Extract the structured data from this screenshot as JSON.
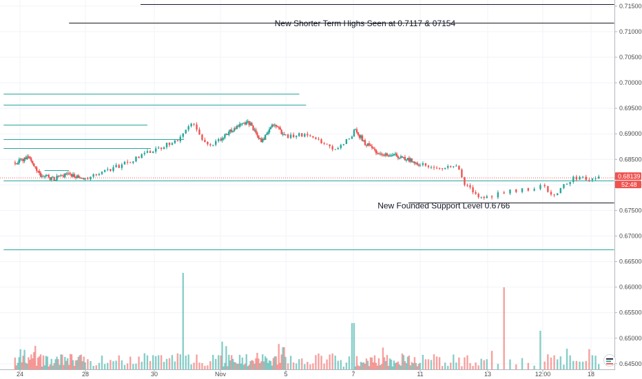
{
  "chart_data": {
    "type": "candlestick",
    "title": "",
    "y_axis": {
      "side": "right",
      "range": [
        0.6439,
        0.7162
      ],
      "ticks": [
        "0.71500",
        "0.71000",
        "0.70500",
        "0.70000",
        "0.69500",
        "0.69000",
        "0.68500",
        "0.68000",
        "0.67500",
        "0.67000",
        "0.66500",
        "0.66000",
        "0.65500",
        "0.65000",
        "0.64500"
      ]
    },
    "x_axis": {
      "ticks": [
        {
          "label": "24",
          "day": 0
        },
        {
          "label": "28",
          "day": 4
        },
        {
          "label": "30",
          "day": 6
        },
        {
          "label": "Nov",
          "day": 8
        },
        {
          "label": "5",
          "day": 12
        },
        {
          "label": "7",
          "day": 14
        },
        {
          "label": "11",
          "day": 18
        },
        {
          "label": "13",
          "day": 20
        },
        {
          "label": "12:00",
          "day": 20.75
        },
        {
          "label": "18",
          "day": 22
        }
      ]
    },
    "price_path": [
      {
        "day": -0.3,
        "price": 0.6844
      },
      {
        "day": 0.6,
        "price": 0.6853
      },
      {
        "day": 1.2,
        "price": 0.682
      },
      {
        "day": 2.0,
        "price": 0.6812
      },
      {
        "day": 3.0,
        "price": 0.6822
      },
      {
        "day": 4.0,
        "price": 0.6812
      },
      {
        "day": 5.0,
        "price": 0.6838
      },
      {
        "day": 6.0,
        "price": 0.6868
      },
      {
        "day": 6.7,
        "price": 0.6888
      },
      {
        "day": 7.1,
        "price": 0.6925
      },
      {
        "day": 7.6,
        "price": 0.6878
      },
      {
        "day": 8.2,
        "price": 0.6895
      },
      {
        "day": 9.0,
        "price": 0.6915
      },
      {
        "day": 9.8,
        "price": 0.6922
      },
      {
        "day": 10.5,
        "price": 0.6885
      },
      {
        "day": 11.3,
        "price": 0.6922
      },
      {
        "day": 11.9,
        "price": 0.6895
      },
      {
        "day": 12.6,
        "price": 0.6898
      },
      {
        "day": 13.5,
        "price": 0.687
      },
      {
        "day": 14.1,
        "price": 0.6908
      },
      {
        "day": 14.7,
        "price": 0.6882
      },
      {
        "day": 15.5,
        "price": 0.6858
      },
      {
        "day": 16.5,
        "price": 0.6858
      },
      {
        "day": 17.5,
        "price": 0.6848
      },
      {
        "day": 18.6,
        "price": 0.6832
      },
      {
        "day": 19.1,
        "price": 0.6838
      },
      {
        "day": 19.3,
        "price": 0.6802
      },
      {
        "day": 19.8,
        "price": 0.6772
      },
      {
        "day": 20.4,
        "price": 0.679
      },
      {
        "day": 20.8,
        "price": 0.6798
      },
      {
        "day": 21.0,
        "price": 0.6778
      },
      {
        "day": 21.5,
        "price": 0.6812
      },
      {
        "day": 22.2,
        "price": 0.6813
      }
    ],
    "volume_spikes": [
      {
        "day": 6.9,
        "rel": 1.0
      },
      {
        "day": 14.0,
        "rel": 0.48
      },
      {
        "day": 20.2,
        "rel": 0.85
      },
      {
        "day": 20.7,
        "rel": 0.4
      }
    ],
    "horizontal_lines": [
      {
        "price": 0.71535,
        "from_day": 5.6,
        "to_day": 22.6,
        "color": "#131722"
      },
      {
        "price": 0.71175,
        "from_day": 3.0,
        "to_day": 22.6,
        "color": "#131722"
      },
      {
        "price": 0.69785,
        "from_day": -1.0,
        "to_day": 12.4,
        "color": "#26a69a"
      },
      {
        "price": 0.69575,
        "from_day": -1.0,
        "to_day": 12.6,
        "color": "#26a69a"
      },
      {
        "price": 0.69185,
        "from_day": -1.0,
        "to_day": 5.8,
        "color": "#26a69a"
      },
      {
        "price": 0.68895,
        "from_day": -1.0,
        "to_day": 6.9,
        "color": "#26a69a"
      },
      {
        "price": 0.68725,
        "from_day": -1.0,
        "to_day": 5.9,
        "color": "#26a69a"
      },
      {
        "price": 0.68285,
        "from_day": 1.5,
        "to_day": 3.0,
        "color": "#26a69a"
      },
      {
        "price": 0.68085,
        "from_day": -1.0,
        "to_day": 22.6,
        "color": "#26a69a"
      },
      {
        "price": 0.6766,
        "from_day": 17.3,
        "to_day": 22.6,
        "color": "#131722"
      },
      {
        "price": 0.66735,
        "from_day": -1.0,
        "to_day": 22.6,
        "color": "#26a69a"
      }
    ],
    "annotations": [
      {
        "text": "New Shorter Term Highs Seen at 0.7117 & 07154",
        "price": 0.7111,
        "day": 14.7
      },
      {
        "text": "New Founded Support Level 0.6766",
        "price": 0.6754,
        "day": 18.7
      }
    ],
    "last_price": {
      "value": "0.68139",
      "countdown": "52:48",
      "color": "#ef5350"
    },
    "colors": {
      "up": "#26a69a",
      "down": "#ef5350",
      "grid": "#f0f3fa",
      "axis": "#b2b5be"
    }
  }
}
